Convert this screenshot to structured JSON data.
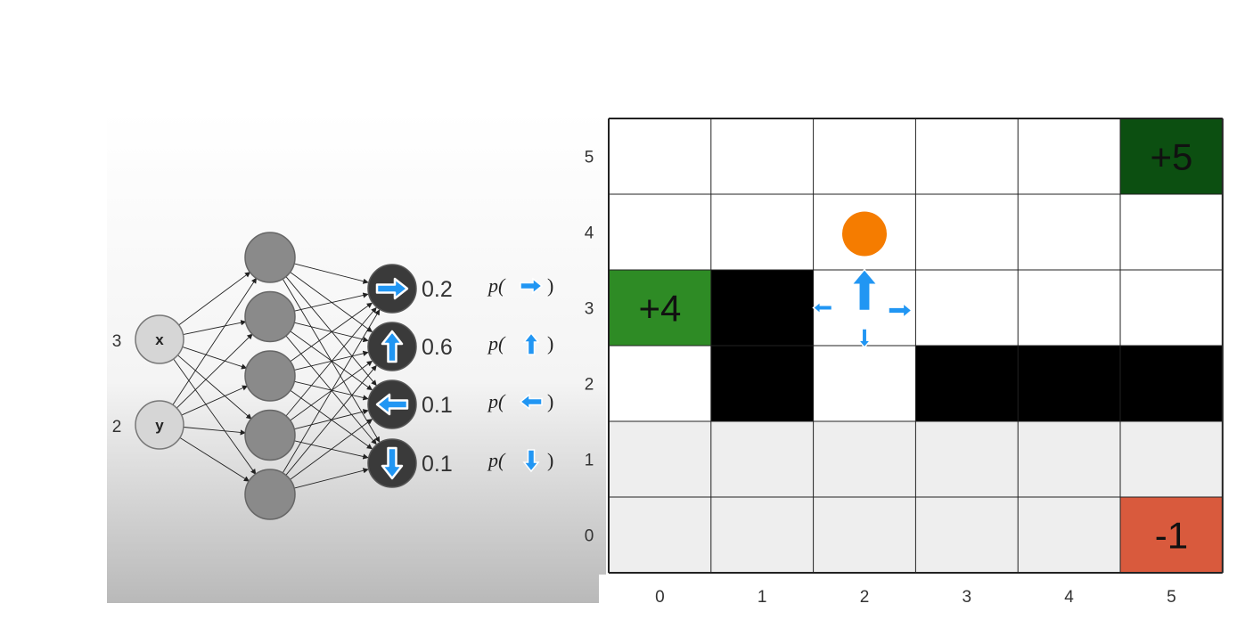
{
  "network": {
    "inputs": [
      {
        "label": "x",
        "value": "3"
      },
      {
        "label": "y",
        "value": "2"
      }
    ],
    "hidden_count": 5,
    "outputs": [
      {
        "icon": "arrow-right-icon",
        "prob": "0.2",
        "p_prefix": "p(",
        "p_suffix": ")"
      },
      {
        "icon": "arrow-up-icon",
        "prob": "0.6",
        "p_prefix": "p(",
        "p_suffix": ")"
      },
      {
        "icon": "arrow-left-icon",
        "prob": "0.1",
        "p_prefix": "p(",
        "p_suffix": ")"
      },
      {
        "icon": "arrow-down-icon",
        "prob": "0.1",
        "p_prefix": "p(",
        "p_suffix": ")"
      }
    ],
    "colors": {
      "input_fill": "#d6d6d6",
      "hidden_fill": "#8a8a8a",
      "output_fill": "#3a3a3a",
      "arrow": "#2196f3"
    }
  },
  "grid": {
    "cols": 6,
    "rows": 6,
    "x_labels": [
      "0",
      "1",
      "2",
      "3",
      "4",
      "5"
    ],
    "y_labels": [
      "0",
      "1",
      "2",
      "3",
      "4",
      "5"
    ],
    "walls": [
      [
        1,
        3
      ],
      [
        1,
        2
      ],
      [
        3,
        2
      ],
      [
        4,
        2
      ],
      [
        5,
        2
      ]
    ],
    "rewards": [
      {
        "col": 0,
        "row": 3,
        "label": "+4",
        "color": "#2e8b25"
      },
      {
        "col": 5,
        "row": 5,
        "label": "+5",
        "color": "#0c4f11"
      },
      {
        "col": 5,
        "row": 0,
        "label": "-1",
        "color": "#d95a3d"
      }
    ],
    "agent": {
      "col": 2,
      "row": 4,
      "color": "#f57c00"
    },
    "policy_cell": {
      "col": 2,
      "row": 3
    },
    "policy_arrows": [
      {
        "dir": "up",
        "weight": "0.6"
      },
      {
        "dir": "right",
        "weight": "0.2"
      },
      {
        "dir": "left",
        "weight": "0.1"
      },
      {
        "dir": "down",
        "weight": "0.1"
      }
    ]
  }
}
